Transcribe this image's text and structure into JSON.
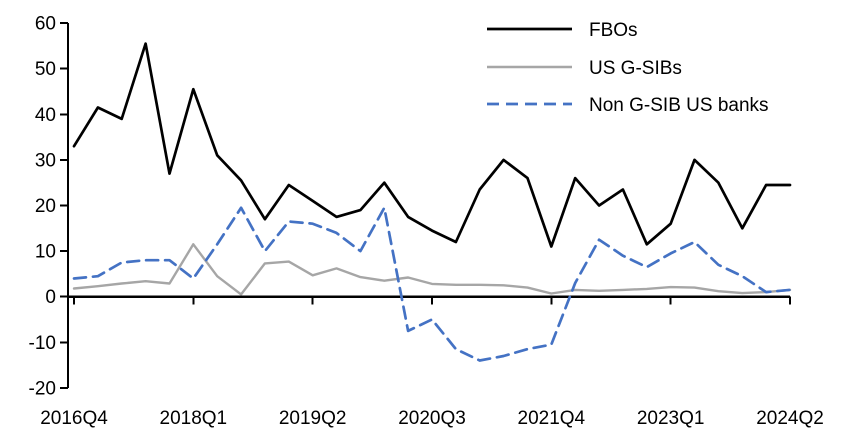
{
  "chart_data": {
    "type": "line",
    "title": "",
    "xlabel": "",
    "ylabel": "",
    "ylim": [
      -20,
      60
    ],
    "y_ticks": [
      60,
      50,
      40,
      30,
      20,
      10,
      0,
      -10,
      -20
    ],
    "grid": false,
    "legend_position": "top-right",
    "x": [
      "2016Q4",
      "2017Q1",
      "2017Q2",
      "2017Q3",
      "2017Q4",
      "2018Q1",
      "2018Q2",
      "2018Q3",
      "2018Q4",
      "2019Q1",
      "2019Q2",
      "2019Q3",
      "2019Q4",
      "2020Q1",
      "2020Q2",
      "2020Q3",
      "2020Q4",
      "2021Q1",
      "2021Q2",
      "2021Q3",
      "2021Q4",
      "2022Q1",
      "2022Q2",
      "2022Q3",
      "2022Q4",
      "2023Q1",
      "2023Q2",
      "2023Q3",
      "2023Q4",
      "2024Q1",
      "2024Q2"
    ],
    "x_tick_indices": [
      0,
      5,
      10,
      15,
      20,
      25,
      30
    ],
    "x_tick_labels": [
      "2016Q4",
      "2018Q1",
      "2019Q2",
      "2020Q3",
      "2021Q4",
      "2023Q1",
      "2024Q2"
    ],
    "series": [
      {
        "name": "FBOs",
        "color": "#000000",
        "style": "solid",
        "values": [
          33,
          41.5,
          39,
          55.5,
          27,
          45.5,
          31,
          25.5,
          17,
          24.5,
          21,
          17.5,
          19,
          25,
          17.5,
          14.5,
          12,
          23.5,
          30,
          26,
          11,
          26,
          20,
          23.5,
          11.5,
          16,
          30,
          25,
          15,
          24.5,
          24.5
        ]
      },
      {
        "name": "US G-SIBs",
        "color": "#A6A6A6",
        "style": "solid",
        "values": [
          1.8,
          2.3,
          2.9,
          3.4,
          2.9,
          11.5,
          4.5,
          0.5,
          7.3,
          7.7,
          4.7,
          6.2,
          4.3,
          3.5,
          4.2,
          2.8,
          2.6,
          2.6,
          2.5,
          2,
          0.7,
          1.5,
          1.3,
          1.5,
          1.7,
          2.1,
          2,
          1.2,
          0.8,
          1,
          1.5
        ]
      },
      {
        "name": "Non G-SIB US banks",
        "color": "#4472C4",
        "style": "dashed",
        "values": [
          4,
          4.5,
          7.5,
          8,
          8,
          4,
          11.5,
          19.5,
          10,
          16.5,
          16,
          14,
          10,
          19.5,
          -7.5,
          -5,
          -11.5,
          -14,
          -13,
          -11.5,
          -10.5,
          3,
          12.5,
          9,
          6.5,
          9.5,
          12,
          7,
          4.5,
          1,
          1.5
        ]
      }
    ]
  }
}
